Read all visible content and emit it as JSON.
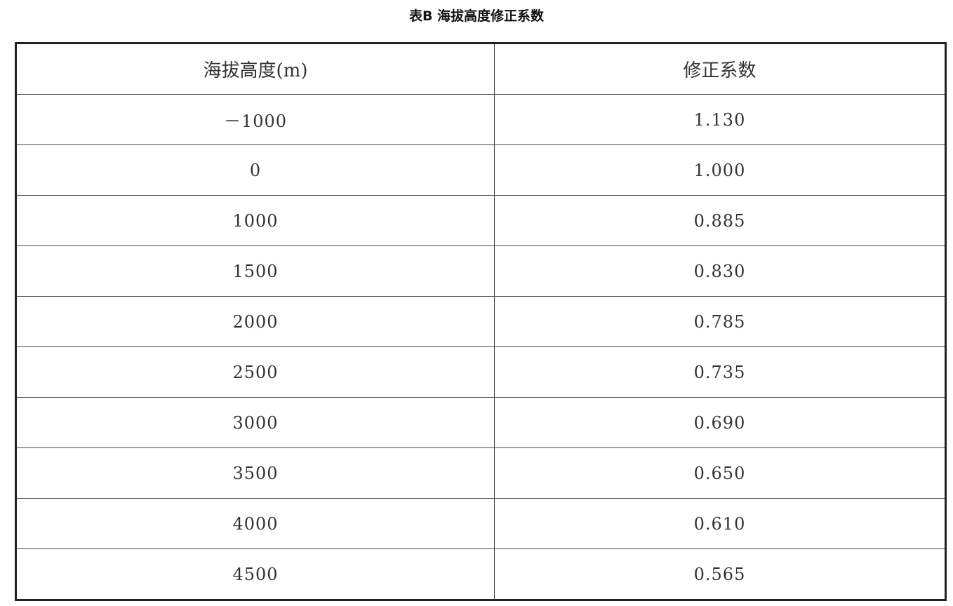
{
  "title": "表B 海拔高度修正系数",
  "table": {
    "headers": [
      "海拔高度(m)",
      "修正系数"
    ],
    "rows": [
      [
        "－1000",
        "1.130"
      ],
      [
        "0",
        "1.000"
      ],
      [
        "1000",
        "0.885"
      ],
      [
        "1500",
        "0.830"
      ],
      [
        "2000",
        "0.785"
      ],
      [
        "2500",
        "0.735"
      ],
      [
        "3000",
        "0.690"
      ],
      [
        "3500",
        "0.650"
      ],
      [
        "4000",
        "0.610"
      ],
      [
        "4500",
        "0.565"
      ]
    ]
  }
}
